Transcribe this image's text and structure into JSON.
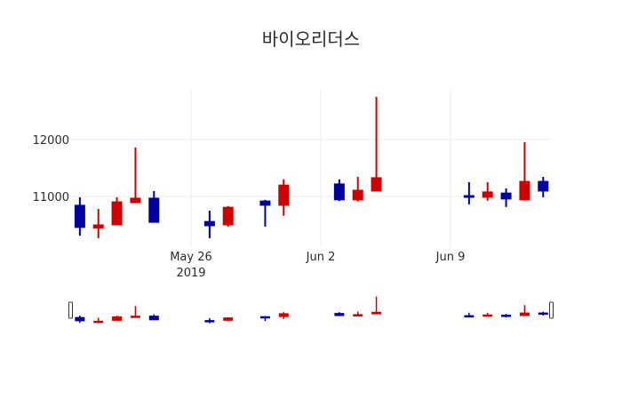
{
  "chart_data": {
    "type": "candlestick",
    "title": "바이오리더스",
    "xlabel": "",
    "ylabel": "",
    "ylim": [
      10240,
      12880
    ],
    "y_ticks": [
      11000,
      12000
    ],
    "y_tick_labels": [
      "11000",
      "12000"
    ],
    "x_ticks": [
      {
        "date": "2019-05-26",
        "label": "May 26",
        "sublabel": "2019"
      },
      {
        "date": "2019-06-02",
        "label": "Jun 2",
        "sublabel": ""
      },
      {
        "date": "2019-06-09",
        "label": "Jun 9",
        "sublabel": ""
      }
    ],
    "xlim": [
      "2019-05-19",
      "2019-06-15"
    ],
    "grid": true,
    "rangeslider": true,
    "increasing_color": "#d00000",
    "decreasing_color": "#0000a0",
    "series": [
      {
        "date": "2019-05-20",
        "open": 10845,
        "high": 10985,
        "low": 10310,
        "close": 10455
      },
      {
        "date": "2019-05-21",
        "open": 10445,
        "high": 10780,
        "low": 10265,
        "close": 10500
      },
      {
        "date": "2019-05-22",
        "open": 10500,
        "high": 10985,
        "low": 10500,
        "close": 10905
      },
      {
        "date": "2019-05-23",
        "open": 10890,
        "high": 11860,
        "low": 10890,
        "close": 10970
      },
      {
        "date": "2019-05-24",
        "open": 10970,
        "high": 11095,
        "low": 10545,
        "close": 10545
      },
      {
        "date": "2019-05-27",
        "open": 10560,
        "high": 10750,
        "low": 10265,
        "close": 10485
      },
      {
        "date": "2019-05-28",
        "open": 10500,
        "high": 10830,
        "low": 10470,
        "close": 10810
      },
      {
        "date": "2019-05-30",
        "open": 10920,
        "high": 10940,
        "low": 10470,
        "close": 10845
      },
      {
        "date": "2019-05-31",
        "open": 10845,
        "high": 11300,
        "low": 10660,
        "close": 11200
      },
      {
        "date": "2019-06-03",
        "open": 11220,
        "high": 11300,
        "low": 10920,
        "close": 10940
      },
      {
        "date": "2019-06-04",
        "open": 10940,
        "high": 11345,
        "low": 10910,
        "close": 11110
      },
      {
        "date": "2019-06-05",
        "open": 11095,
        "high": 12750,
        "low": 11095,
        "close": 11330
      },
      {
        "date": "2019-06-10",
        "open": 11015,
        "high": 11250,
        "low": 10860,
        "close": 10985
      },
      {
        "date": "2019-06-11",
        "open": 10985,
        "high": 11250,
        "low": 10925,
        "close": 11080
      },
      {
        "date": "2019-06-12",
        "open": 11060,
        "high": 11140,
        "low": 10815,
        "close": 10955
      },
      {
        "date": "2019-06-13",
        "open": 10940,
        "high": 11955,
        "low": 10925,
        "close": 11265
      },
      {
        "date": "2019-06-14",
        "open": 11265,
        "high": 11345,
        "low": 10985,
        "close": 11095
      }
    ]
  }
}
